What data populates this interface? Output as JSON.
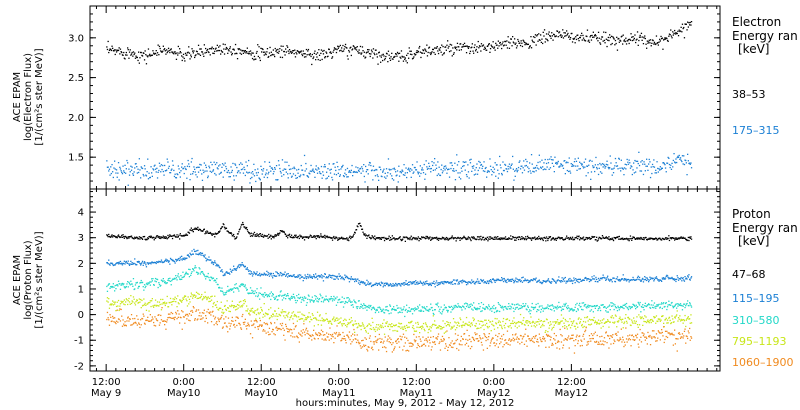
{
  "chart_data": [
    {
      "type": "scatter",
      "panel": "electron",
      "ylabel_lines": [
        "ACE EPAM",
        "log(Electron Flux)",
        "[1/(cm²s ster MeV)]"
      ],
      "ylim": [
        1.1,
        3.4
      ],
      "yticks": [
        1.5,
        2.0,
        2.5,
        3.0
      ],
      "ytick_labels": [
        "1.5",
        "2.0",
        "2.5",
        "3.0"
      ],
      "legend_title_lines": [
        "Electron",
        "Energy ran",
        "[keV]"
      ],
      "series": [
        {
          "name": "38–53",
          "color": "#000000",
          "x": [
            0,
            6,
            12,
            18,
            24,
            30,
            36,
            42,
            48,
            54,
            60,
            66,
            72,
            78,
            84,
            90,
            96,
            102,
            108,
            114,
            120,
            126,
            132,
            138,
            144,
            150,
            156,
            162,
            168,
            174,
            178,
            181
          ],
          "y": [
            2.85,
            2.83,
            2.78,
            2.86,
            2.78,
            2.84,
            2.88,
            2.85,
            2.8,
            2.85,
            2.82,
            2.78,
            2.86,
            2.85,
            2.8,
            2.75,
            2.83,
            2.85,
            2.87,
            2.87,
            2.9,
            2.94,
            2.96,
            3.05,
            3.02,
            3.0,
            2.98,
            3.0,
            2.96,
            3.0,
            3.13,
            3.2
          ],
          "noise": 0.04
        },
        {
          "name": "175–315",
          "color": "#1a7fd4",
          "x": [
            0,
            6,
            12,
            18,
            24,
            30,
            36,
            42,
            48,
            54,
            60,
            66,
            72,
            78,
            84,
            90,
            96,
            102,
            108,
            114,
            120,
            126,
            132,
            138,
            144,
            150,
            156,
            162,
            168,
            174,
            178,
            181
          ],
          "y": [
            1.37,
            1.35,
            1.33,
            1.36,
            1.33,
            1.35,
            1.36,
            1.34,
            1.32,
            1.35,
            1.34,
            1.33,
            1.35,
            1.34,
            1.32,
            1.3,
            1.34,
            1.35,
            1.36,
            1.36,
            1.37,
            1.38,
            1.39,
            1.41,
            1.4,
            1.39,
            1.39,
            1.4,
            1.39,
            1.41,
            1.47,
            1.45
          ],
          "noise": 0.06
        }
      ]
    },
    {
      "type": "scatter",
      "panel": "proton",
      "ylabel_lines": [
        "ACE EPAM",
        "log(Proton Flux)",
        "[1/(cm²s ster MeV)]"
      ],
      "ylim": [
        -2.2,
        4.9
      ],
      "yticks": [
        -2,
        -1,
        0,
        1,
        2,
        3,
        4
      ],
      "ytick_labels": [
        "-2",
        "-1",
        "0",
        "1",
        "2",
        "3",
        "4"
      ],
      "legend_title_lines": [
        "Proton",
        "Energy ran",
        "[keV]"
      ],
      "series": [
        {
          "name": "47–68",
          "color": "#000000",
          "x": [
            0,
            6,
            12,
            18,
            24,
            27,
            30,
            34,
            36,
            40,
            42,
            44,
            48,
            52,
            54,
            56,
            60,
            66,
            72,
            76,
            78,
            80,
            84,
            90,
            96,
            102,
            108,
            114,
            120,
            126,
            132,
            138,
            144,
            150,
            156,
            162,
            168,
            174,
            181
          ],
          "y": [
            3.1,
            3.05,
            3.0,
            3.05,
            3.1,
            3.4,
            3.3,
            3.1,
            3.5,
            3.0,
            3.6,
            3.2,
            3.1,
            3.05,
            3.3,
            3.1,
            3.05,
            3.05,
            3.0,
            3.0,
            3.6,
            3.1,
            3.0,
            3.0,
            3.0,
            3.0,
            3.0,
            3.0,
            3.0,
            3.0,
            3.0,
            3.0,
            3.0,
            3.0,
            3.0,
            3.0,
            3.0,
            3.0,
            3.0
          ],
          "noise": 0.04
        },
        {
          "name": "115–195",
          "color": "#1a7fd4",
          "x": [
            0,
            6,
            12,
            18,
            24,
            27,
            30,
            34,
            36,
            40,
            42,
            44,
            48,
            52,
            54,
            56,
            60,
            66,
            72,
            76,
            78,
            80,
            84,
            90,
            96,
            102,
            108,
            114,
            120,
            126,
            132,
            138,
            144,
            150,
            156,
            162,
            168,
            174,
            181
          ],
          "y": [
            2.0,
            2.05,
            2.0,
            2.1,
            2.2,
            2.5,
            2.3,
            2.0,
            1.6,
            1.8,
            2.0,
            1.7,
            1.6,
            1.55,
            1.6,
            1.55,
            1.5,
            1.5,
            1.5,
            1.4,
            1.3,
            1.25,
            1.2,
            1.2,
            1.25,
            1.25,
            1.3,
            1.3,
            1.35,
            1.35,
            1.35,
            1.35,
            1.35,
            1.4,
            1.4,
            1.4,
            1.4,
            1.45,
            1.45
          ],
          "noise": 0.05
        },
        {
          "name": "310–580",
          "color": "#22d8c8",
          "x": [
            0,
            6,
            12,
            18,
            24,
            27,
            30,
            34,
            36,
            40,
            42,
            44,
            48,
            52,
            54,
            56,
            60,
            66,
            72,
            76,
            78,
            80,
            84,
            90,
            96,
            102,
            108,
            114,
            120,
            126,
            132,
            138,
            144,
            150,
            156,
            162,
            168,
            174,
            181
          ],
          "y": [
            1.1,
            1.2,
            1.2,
            1.3,
            1.5,
            1.8,
            1.6,
            1.3,
            0.9,
            1.0,
            1.2,
            0.9,
            0.8,
            0.75,
            0.8,
            0.7,
            0.65,
            0.65,
            0.6,
            0.5,
            0.35,
            0.3,
            0.25,
            0.2,
            0.25,
            0.25,
            0.3,
            0.3,
            0.3,
            0.3,
            0.3,
            0.3,
            0.3,
            0.35,
            0.35,
            0.35,
            0.35,
            0.4,
            0.4
          ],
          "noise": 0.09
        },
        {
          "name": "795–1193",
          "color": "#c8e619",
          "x": [
            0,
            6,
            12,
            18,
            24,
            27,
            30,
            34,
            36,
            40,
            42,
            44,
            48,
            52,
            54,
            56,
            60,
            66,
            72,
            76,
            78,
            80,
            84,
            90,
            96,
            102,
            108,
            114,
            120,
            126,
            132,
            138,
            144,
            150,
            156,
            162,
            168,
            174,
            181
          ],
          "y": [
            0.45,
            0.5,
            0.45,
            0.5,
            0.6,
            0.8,
            0.7,
            0.45,
            0.25,
            0.35,
            0.45,
            0.2,
            0.1,
            0.05,
            0.05,
            0.0,
            -0.1,
            -0.15,
            -0.2,
            -0.3,
            -0.4,
            -0.4,
            -0.45,
            -0.45,
            -0.45,
            -0.4,
            -0.4,
            -0.35,
            -0.35,
            -0.3,
            -0.3,
            -0.35,
            -0.3,
            -0.25,
            -0.25,
            -0.2,
            -0.2,
            -0.15,
            -0.15
          ],
          "noise": 0.12
        },
        {
          "name": "1060–1900",
          "color": "#f08a1e",
          "x": [
            0,
            6,
            12,
            18,
            24,
            27,
            30,
            34,
            36,
            40,
            42,
            44,
            48,
            52,
            54,
            56,
            60,
            66,
            72,
            76,
            78,
            80,
            84,
            90,
            96,
            102,
            108,
            114,
            120,
            126,
            132,
            138,
            144,
            150,
            156,
            162,
            168,
            174,
            181
          ],
          "y": [
            -0.2,
            -0.15,
            -0.2,
            -0.1,
            -0.05,
            0.05,
            0.0,
            -0.2,
            -0.35,
            -0.3,
            -0.2,
            -0.4,
            -0.5,
            -0.55,
            -0.55,
            -0.6,
            -0.7,
            -0.75,
            -0.8,
            -0.9,
            -1.0,
            -1.0,
            -1.05,
            -1.1,
            -1.1,
            -1.05,
            -1.05,
            -1.0,
            -1.0,
            -0.95,
            -0.95,
            -1.0,
            -0.95,
            -0.9,
            -0.9,
            -0.85,
            -0.85,
            -0.8,
            -0.8
          ],
          "noise": 0.16
        }
      ]
    }
  ],
  "x_axis": {
    "xlim": [
      -5,
      190
    ],
    "ticks": [
      {
        "x": 0,
        "top": "12:00",
        "bottom": "May 9"
      },
      {
        "x": 24,
        "top": "0:00",
        "bottom": "May10"
      },
      {
        "x": 48,
        "top": "12:00",
        "bottom": "May10"
      },
      {
        "x": 72,
        "top": "0:00",
        "bottom": "May11"
      },
      {
        "x": 96,
        "top": "12:00",
        "bottom": "May11"
      },
      {
        "x": 120,
        "top": "0:00",
        "bottom": "May12"
      },
      {
        "x": 144,
        "top": "12:00",
        "bottom": "May12"
      }
    ],
    "label": "hours:minutes, May  9, 2012 - May 12, 2012"
  }
}
